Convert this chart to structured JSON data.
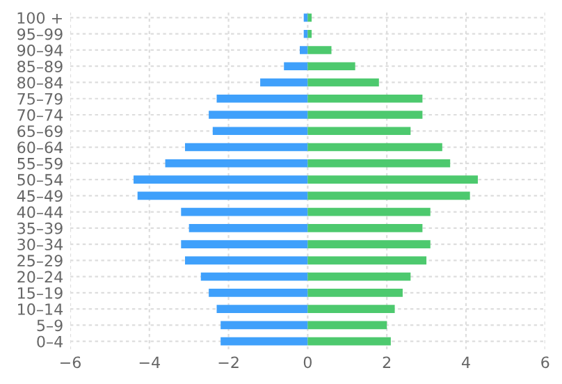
{
  "chart_data": {
    "type": "bar",
    "orientation": "horizontal",
    "stacked": true,
    "grid": true,
    "categories": [
      "100 +",
      "95–99",
      "90–94",
      "85–89",
      "80–84",
      "75–79",
      "70–74",
      "65–69",
      "60–64",
      "55–59",
      "50–54",
      "45–49",
      "40–44",
      "35–39",
      "30–34",
      "25–29",
      "20–24",
      "15–19",
      "10–14",
      "5–9",
      "0–4"
    ],
    "series": [
      {
        "color": "#3fa0fb",
        "values": [
          -0.1,
          -0.1,
          -0.2,
          -0.6,
          -1.2,
          -2.3,
          -2.5,
          -2.4,
          -3.1,
          -3.6,
          -4.4,
          -4.3,
          -3.2,
          -3.0,
          -3.2,
          -3.1,
          -2.7,
          -2.5,
          -2.3,
          -2.2,
          -2.2
        ]
      },
      {
        "color": "#4dc96e",
        "values": [
          0.1,
          0.1,
          0.6,
          1.2,
          1.8,
          2.9,
          2.9,
          2.6,
          3.4,
          3.6,
          4.3,
          4.1,
          3.1,
          2.9,
          3.1,
          3.0,
          2.6,
          2.4,
          2.2,
          2.0,
          2.1
        ]
      }
    ],
    "xlim": [
      -6,
      6
    ],
    "xticks": [
      {
        "value": -6,
        "label": "−6"
      },
      {
        "value": -4,
        "label": "−4"
      },
      {
        "value": -2,
        "label": "−2"
      },
      0,
      2,
      4,
      6
    ]
  }
}
